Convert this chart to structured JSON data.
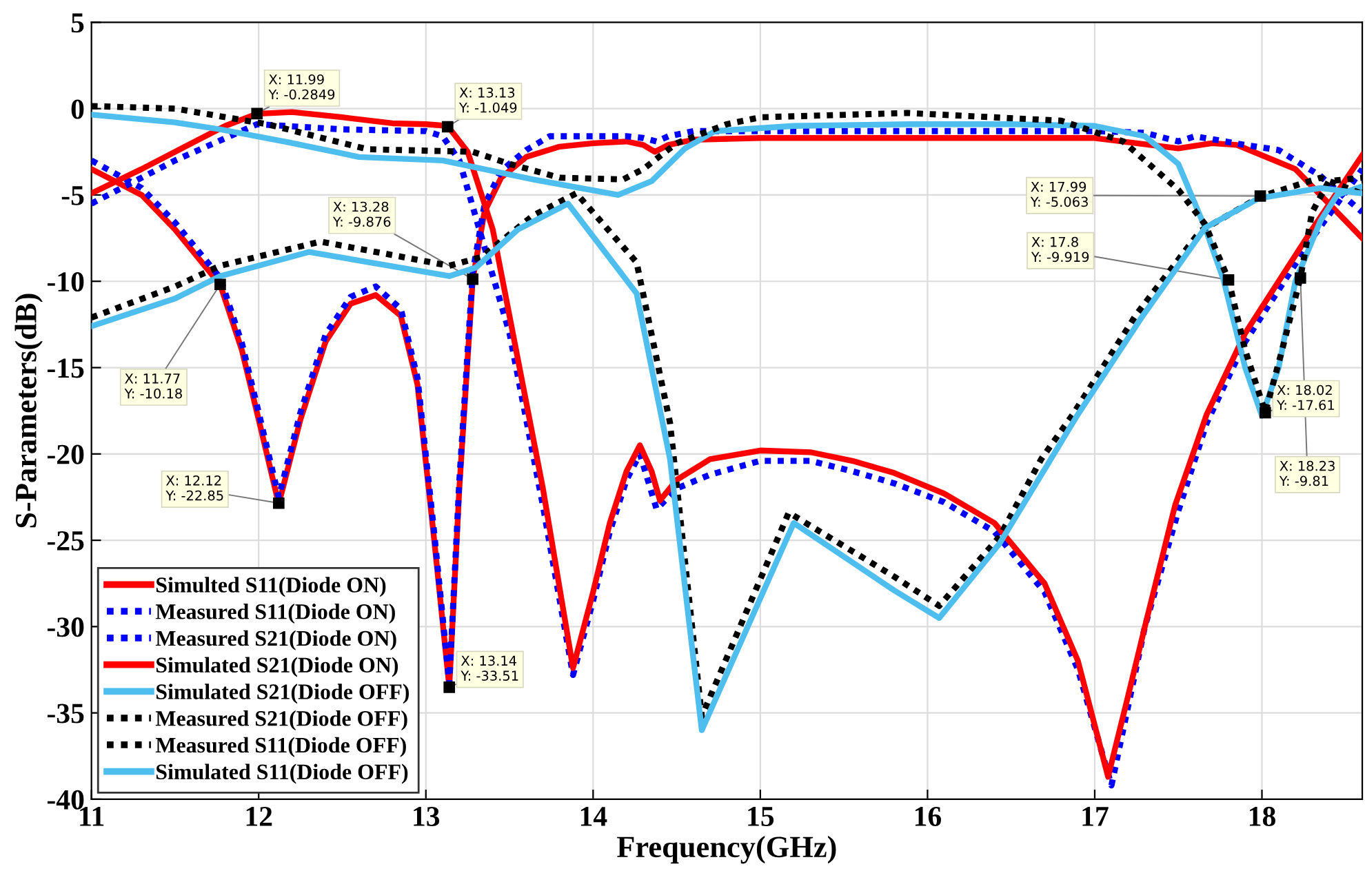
{
  "chart_data": {
    "type": "line",
    "xlabel": "Frequency(GHz)",
    "ylabel": "S-Parameters(dB)",
    "xlim": [
      11,
      18.6
    ],
    "ylim": [
      -40,
      5
    ],
    "xticks": [
      11,
      12,
      13,
      14,
      15,
      16,
      17,
      18
    ],
    "yticks": [
      -40,
      -35,
      -30,
      -25,
      -20,
      -15,
      -10,
      -5,
      0,
      5
    ],
    "grid": true,
    "legend": "bottom left",
    "marker": "none",
    "series": [
      {
        "name": "Simulted S11(Diode ON)",
        "color": "#ff0000",
        "line_style": "solid",
        "x": [
          11,
          11.3,
          11.5,
          11.77,
          11.9,
          12.0,
          12.12,
          12.25,
          12.4,
          12.55,
          12.7,
          12.85,
          12.95,
          13.05,
          13.14,
          13.2,
          13.28,
          13.35,
          13.45,
          13.6,
          13.8,
          14.0,
          14.2,
          14.3,
          14.37,
          14.45,
          14.6,
          15,
          16,
          17,
          17.5,
          17.7,
          17.85,
          18.0,
          18.2,
          18.4,
          18.6
        ],
        "values": [
          -3.5,
          -5,
          -7,
          -10.2,
          -14,
          -18,
          -22.9,
          -18,
          -13.5,
          -11.3,
          -10.8,
          -12,
          -16,
          -25,
          -33.5,
          -22,
          -9.9,
          -6,
          -4,
          -2.8,
          -2.2,
          -2.0,
          -1.9,
          -2.1,
          -2.5,
          -2.1,
          -1.8,
          -1.7,
          -1.7,
          -1.7,
          -2.3,
          -2.0,
          -2.1,
          -2.7,
          -3.5,
          -5.5,
          -7.5
        ]
      },
      {
        "name": "Measured S11(Diode ON)",
        "color": "#0000ff",
        "line_style": "dotted",
        "x": [
          11,
          11.3,
          11.5,
          11.77,
          11.9,
          12.0,
          12.12,
          12.25,
          12.4,
          12.55,
          12.7,
          12.85,
          12.95,
          13.05,
          13.14,
          13.2,
          13.28,
          13.35,
          13.45,
          13.6,
          13.74,
          14.0,
          14.2,
          14.3,
          14.38,
          14.45,
          14.6,
          15,
          16,
          17,
          17.3,
          17.5,
          17.6,
          17.9,
          18.1,
          18.35,
          18.6
        ],
        "values": [
          -3.0,
          -4.6,
          -6.6,
          -9.8,
          -13.6,
          -17.6,
          -22.5,
          -17.6,
          -13.1,
          -10.9,
          -10.3,
          -11.6,
          -15.6,
          -24.6,
          -33.3,
          -21.6,
          -9.5,
          -5.6,
          -3.6,
          -2.4,
          -1.6,
          -1.6,
          -1.6,
          -1.7,
          -1.9,
          -1.6,
          -1.3,
          -1.3,
          -1.3,
          -1.3,
          -1.4,
          -1.9,
          -1.6,
          -2.1,
          -2.4,
          -3.9,
          -6
        ]
      },
      {
        "name": "Measured S21(Diode ON)",
        "color": "#0000ff",
        "line_style": "dotted",
        "x": [
          11,
          11.5,
          11.99,
          12.5,
          13.0,
          13.1,
          13.2,
          13.35,
          13.5,
          13.7,
          13.88,
          14.0,
          14.1,
          14.2,
          14.28,
          14.38,
          14.5,
          14.7,
          15.0,
          15.3,
          15.55,
          15.8,
          16.1,
          16.4,
          16.7,
          16.9,
          17.1,
          17.3,
          17.5,
          17.67,
          17.9,
          18.1,
          18.3,
          18.6
        ],
        "values": [
          -5.5,
          -3,
          -0.9,
          -1.2,
          -1.3,
          -1.6,
          -3,
          -8,
          -13,
          -23,
          -32.8,
          -28.5,
          -24.5,
          -21.5,
          -20,
          -23.2,
          -22,
          -21.2,
          -20.4,
          -20.4,
          -21,
          -21.7,
          -22.8,
          -24.5,
          -28,
          -32.5,
          -39.2,
          -30,
          -23.3,
          -18.2,
          -13.5,
          -10.5,
          -7.5,
          -3.5
        ]
      },
      {
        "name": "Simulated S21(Diode ON)",
        "color": "#ff0000",
        "line_style": "solid",
        "x": [
          11,
          11.3,
          11.6,
          11.8,
          11.99,
          12.2,
          12.5,
          12.8,
          13.0,
          13.13,
          13.25,
          13.4,
          13.5,
          13.7,
          13.88,
          14.0,
          14.1,
          14.2,
          14.28,
          14.35,
          14.4,
          14.5,
          14.7,
          15.0,
          15.3,
          15.55,
          15.8,
          16.1,
          16.4,
          16.7,
          16.9,
          17.08,
          17.2,
          17.3,
          17.48,
          17.67,
          17.9,
          18.1,
          18.3,
          18.6
        ],
        "values": [
          -4.9,
          -3.5,
          -2,
          -1.0,
          -0.3,
          -0.2,
          -0.5,
          -0.85,
          -0.9,
          -1.0,
          -2.5,
          -7,
          -12,
          -22,
          -32.4,
          -28,
          -24,
          -21,
          -19.5,
          -21,
          -22.7,
          -21.5,
          -20.3,
          -19.8,
          -19.9,
          -20.4,
          -21.1,
          -22.3,
          -24,
          -27.5,
          -32,
          -38.7,
          -34,
          -30,
          -23,
          -17.7,
          -13,
          -10,
          -7,
          -2.7
        ]
      },
      {
        "name": "Simulated S21(Diode OFF)",
        "color": "#4dbeee",
        "line_style": "solid",
        "x": [
          11,
          11.5,
          11.77,
          12.18,
          12.6,
          13.1,
          13.64,
          14.15,
          14.35,
          14.55,
          14.73,
          15.2,
          15.9,
          16.5,
          17,
          17.3,
          17.5,
          17.66,
          17.77,
          17.9,
          18.0,
          18.1,
          18.2,
          18.35,
          18.45,
          18.6
        ],
        "values": [
          -0.35,
          -0.8,
          -1.2,
          -1.95,
          -2.8,
          -3.0,
          -4.1,
          -5.0,
          -4.2,
          -2.3,
          -1.3,
          -1.0,
          -0.9,
          -0.9,
          -1.0,
          -1.6,
          -3.2,
          -6.9,
          -9.9,
          -15,
          -17.8,
          -15,
          -10,
          -6.5,
          -5.0,
          -4.5
        ]
      },
      {
        "name": "Measured S21(Diode OFF)",
        "color": "#000000",
        "line_style": "dotted",
        "x": [
          11,
          11.5,
          12.05,
          12.65,
          13.28,
          13.5,
          13.8,
          14.18,
          14.3,
          14.5,
          14.8,
          15.0,
          15.88,
          16.8,
          17.17,
          17.5,
          17.66,
          17.8,
          17.9,
          18.02,
          18.12,
          18.23,
          18.3,
          18.4,
          18.6
        ],
        "values": [
          0.15,
          0,
          -0.9,
          -2.35,
          -2.5,
          -3.2,
          -4.0,
          -4.1,
          -3.5,
          -2,
          -0.9,
          -0.5,
          -0.25,
          -0.7,
          -1.9,
          -4.7,
          -6.7,
          -9.9,
          -14,
          -17.6,
          -14,
          -9.8,
          -6,
          -4.2,
          -4.0
        ]
      },
      {
        "name": "Measured S11(Diode OFF)",
        "color": "#000000",
        "line_style": "dotted",
        "x": [
          11,
          11.5,
          11.77,
          12.37,
          13.14,
          13.33,
          13.64,
          13.9,
          14.26,
          14.46,
          14.65,
          15.17,
          15.8,
          16.07,
          16.43,
          16.68,
          16.87,
          17.25,
          17.63,
          17.99,
          18.35,
          18.59
        ],
        "values": [
          -12.1,
          -10.3,
          -9.1,
          -7.7,
          -9.1,
          -8.6,
          -6.2,
          -4.9,
          -8.9,
          -18.2,
          -35.2,
          -23.4,
          -27.1,
          -28.8,
          -24.8,
          -20.3,
          -17.7,
          -11.9,
          -7.1,
          -5.1,
          -4.0,
          -4.9
        ]
      },
      {
        "name": "Simulated S11(Diode OFF)",
        "color": "#4dbeee",
        "line_style": "solid",
        "x": [
          11,
          11.5,
          11.77,
          12.3,
          13.14,
          13.3,
          13.55,
          13.85,
          14.26,
          14.46,
          14.65,
          15.2,
          15.8,
          16.07,
          16.43,
          16.7,
          16.9,
          17.28,
          17.66,
          17.98,
          18.35,
          18.59
        ],
        "values": [
          -12.6,
          -11,
          -9.7,
          -8.3,
          -9.7,
          -9.2,
          -7.0,
          -5.5,
          -10.7,
          -20.3,
          -36,
          -24,
          -27.9,
          -29.5,
          -25.2,
          -20.9,
          -17.7,
          -12.1,
          -6.9,
          -5.2,
          -4.6,
          -4.9
        ]
      }
    ],
    "annotations": [
      {
        "text": "X: 11.99\nY: -0.2849",
        "x": 11.99,
        "y": -0.2849
      },
      {
        "text": "X: 13.13\nY: -1.049",
        "x": 13.13,
        "y": -1.049
      },
      {
        "text": "X: 11.77\nY: -10.18",
        "x": 11.77,
        "y": -10.18
      },
      {
        "text": "X: 13.28\nY: -9.876",
        "x": 13.28,
        "y": -9.876
      },
      {
        "text": "X: 12.12\nY: -22.85",
        "x": 12.12,
        "y": -22.85
      },
      {
        "text": "X: 13.14\nY: -33.51",
        "x": 13.14,
        "y": -33.51
      },
      {
        "text": "X: 17.99\nY: -5.063",
        "x": 17.99,
        "y": -5.063
      },
      {
        "text": "X: 17.8\nY: -9.919",
        "x": 17.8,
        "y": -9.919
      },
      {
        "text": "X: 18.23\nY: -9.81",
        "x": 18.23,
        "y": -9.81
      },
      {
        "text": "X: 18.02\nY: -17.61",
        "x": 18.02,
        "y": -17.61
      }
    ]
  }
}
